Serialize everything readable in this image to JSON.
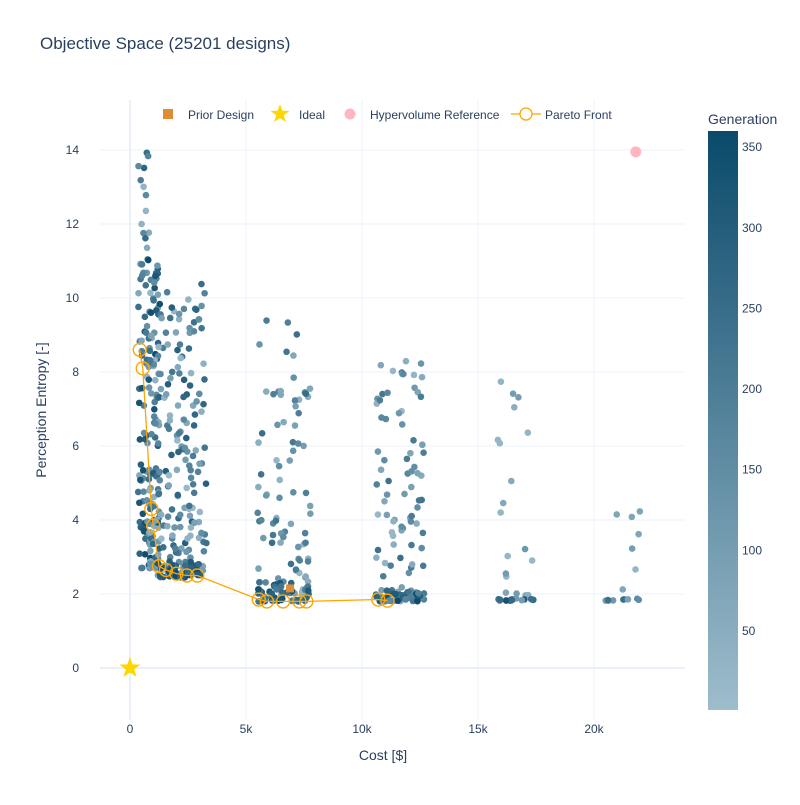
{
  "chart_data": {
    "type": "scatter",
    "title": "Objective Space (25201 designs)",
    "xlabel": "Cost [$]",
    "ylabel": "Perception Entropy [-]",
    "xlim": [
      -1400,
      24200
    ],
    "ylim": [
      -1.2,
      15.2
    ],
    "x_ticks": [
      0,
      5000,
      10000,
      15000,
      20000
    ],
    "x_tick_labels": [
      "0",
      "5k",
      "10k",
      "15k",
      "20k"
    ],
    "y_ticks": [
      0,
      2,
      4,
      6,
      8,
      10,
      12,
      14
    ],
    "y_tick_labels": [
      "0",
      "2",
      "4",
      "6",
      "8",
      "10",
      "12",
      "14"
    ],
    "grid": true,
    "legend_position": "top",
    "legend": [
      {
        "label": "Prior Design",
        "marker": "square",
        "color": "#e08c35"
      },
      {
        "label": "Ideal",
        "marker": "star",
        "color": "#ffd700"
      },
      {
        "label": "Hypervolume Reference",
        "marker": "circle",
        "color": "#ffb6c1"
      },
      {
        "label": "Pareto Front",
        "marker": "open-circle-line",
        "color": "#ffa500"
      }
    ],
    "colorbar": {
      "title": "Generation",
      "ticks": [
        50,
        100,
        150,
        200,
        250,
        300,
        350
      ],
      "range": [
        1,
        360
      ],
      "color_low": "#9ebdcc",
      "color_high": "#0b4a6b"
    },
    "series": [
      {
        "name": "Prior Design",
        "points": [
          [
            6900,
            2.15
          ]
        ]
      },
      {
        "name": "Ideal",
        "points": [
          [
            0,
            0
          ]
        ]
      },
      {
        "name": "Hypervolume Reference",
        "points": [
          [
            21800,
            13.95
          ]
        ]
      },
      {
        "name": "Pareto Front",
        "points": [
          [
            420,
            8.6
          ],
          [
            550,
            8.1
          ],
          [
            920,
            4.3
          ],
          [
            1000,
            3.85
          ],
          [
            1250,
            2.75
          ],
          [
            1550,
            2.65
          ],
          [
            2000,
            2.55
          ],
          [
            2450,
            2.5
          ],
          [
            2900,
            2.5
          ],
          [
            5550,
            1.85
          ],
          [
            5900,
            1.8
          ],
          [
            6600,
            1.8
          ],
          [
            7300,
            1.8
          ],
          [
            7600,
            1.8
          ],
          [
            10700,
            1.85
          ],
          [
            11100,
            1.82
          ]
        ]
      },
      {
        "name": "Designs",
        "clusters": [
          {
            "x_min": 350,
            "x_max": 900,
            "y_min": 2.7,
            "y_max": 14.0,
            "count": 80,
            "gen_min": 20,
            "gen_max": 360
          },
          {
            "x_min": 800,
            "x_max": 1300,
            "y_min": 2.7,
            "y_max": 10.9,
            "count": 110,
            "gen_min": 20,
            "gen_max": 360
          },
          {
            "x_min": 1200,
            "x_max": 3300,
            "y_min": 2.5,
            "y_max": 10.5,
            "count": 170,
            "gen_min": 10,
            "gen_max": 300
          },
          {
            "x_min": 1200,
            "x_max": 3100,
            "y_min": 2.45,
            "y_max": 2.9,
            "count": 40,
            "gen_min": 250,
            "gen_max": 360
          },
          {
            "x_min": 5500,
            "x_max": 7800,
            "y_min": 1.8,
            "y_max": 9.4,
            "count": 90,
            "gen_min": 10,
            "gen_max": 250
          },
          {
            "x_min": 5500,
            "x_max": 7800,
            "y_min": 1.8,
            "y_max": 2.3,
            "count": 45,
            "gen_min": 200,
            "gen_max": 360
          },
          {
            "x_min": 10600,
            "x_max": 12700,
            "y_min": 1.8,
            "y_max": 8.6,
            "count": 90,
            "gen_min": 10,
            "gen_max": 250
          },
          {
            "x_min": 10600,
            "x_max": 12700,
            "y_min": 1.8,
            "y_max": 2.1,
            "count": 40,
            "gen_min": 150,
            "gen_max": 360
          },
          {
            "x_min": 15800,
            "x_max": 17400,
            "y_min": 1.82,
            "y_max": 8.8,
            "count": 20,
            "gen_min": 10,
            "gen_max": 120
          },
          {
            "x_min": 15800,
            "x_max": 17400,
            "y_min": 1.82,
            "y_max": 1.88,
            "count": 15,
            "gen_min": 100,
            "gen_max": 350
          },
          {
            "x_min": 20500,
            "x_max": 22000,
            "y_min": 1.82,
            "y_max": 5.5,
            "count": 8,
            "gen_min": 10,
            "gen_max": 100
          },
          {
            "x_min": 20500,
            "x_max": 22000,
            "y_min": 1.82,
            "y_max": 1.9,
            "count": 8,
            "gen_min": 60,
            "gen_max": 250
          }
        ]
      }
    ]
  }
}
